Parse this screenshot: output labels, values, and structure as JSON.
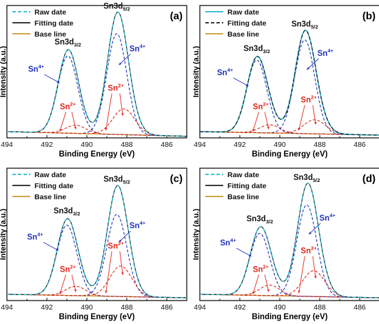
{
  "colors": {
    "raw": "#22b7c9",
    "fit": "#1b1b1b",
    "base": "#c89a2a",
    "sn4": "#1f2fbf",
    "sn2": "#e0241b",
    "axis": "#000000"
  },
  "chart_data": [
    {
      "type": "line",
      "panel_label": "(a)",
      "xlabel": "Binding Energy (eV)",
      "ylabel": "Intensity (a.u.)",
      "xlim": [
        494,
        485
      ],
      "x_ticks": [
        "494",
        "492",
        "490",
        "488",
        "486"
      ],
      "legend": {
        "placement": "top-left",
        "entries": [
          "Raw date",
          "Fitting date",
          "Base line"
        ],
        "styles": [
          "dashed-raw",
          "solid-fit",
          "solid-base"
        ]
      },
      "fit_style": "solid",
      "annotations": {
        "peak_left": "Sn3d",
        "peak_left_sub": "3/2",
        "peak_right": "Sn3d",
        "peak_right_sub": "5/2",
        "sn4": "Sn",
        "sn4_sup": "4+",
        "sn2": "Sn",
        "sn2_sup": "2+"
      },
      "peaks": [
        {
          "species": "Sn4+",
          "level": "3d3/2",
          "center": 490.95,
          "height": 0.66,
          "width": 0.5
        },
        {
          "species": "Sn2+",
          "level": "3d3/2",
          "center": 490.55,
          "height": 0.07,
          "width": 0.5
        },
        {
          "species": "Sn4+",
          "level": "3d5/2",
          "center": 488.5,
          "height": 0.86,
          "width": 0.5
        },
        {
          "species": "Sn2+",
          "level": "3d5/2",
          "center": 488.15,
          "height": 0.22,
          "width": 0.55
        }
      ],
      "baseline": [
        0.03,
        -0.01
      ]
    },
    {
      "type": "line",
      "panel_label": "(b)",
      "xlabel": "Binding Energy (eV)",
      "ylabel": "Intensity (a.u.)",
      "xlim": [
        494,
        485
      ],
      "x_ticks": [
        "494",
        "492",
        "490",
        "488",
        "486"
      ],
      "legend": {
        "placement": "top-left",
        "entries": [
          "Raw date",
          "Fitting date",
          "Base line"
        ],
        "styles": [
          "solid-raw",
          "dashed-fit",
          "solid-base"
        ]
      },
      "fit_style": "dashed",
      "annotations": {
        "peak_left": "Sn3d",
        "peak_left_sub": "3/2",
        "peak_right": "Sn3d",
        "peak_right_sub": "5/2",
        "sn4": "Sn",
        "sn4_sup": "4+",
        "sn2": "Sn",
        "sn2_sup": "2+"
      },
      "peaks": [
        {
          "species": "Sn4+",
          "level": "3d3/2",
          "center": 491.15,
          "height": 0.62,
          "width": 0.5
        },
        {
          "species": "Sn2+",
          "level": "3d3/2",
          "center": 490.5,
          "height": 0.07,
          "width": 0.5
        },
        {
          "species": "Sn4+",
          "level": "3d5/2",
          "center": 488.75,
          "height": 0.8,
          "width": 0.5
        },
        {
          "species": "Sn2+",
          "level": "3d5/2",
          "center": 488.25,
          "height": 0.12,
          "width": 0.55
        }
      ],
      "baseline": [
        0.03,
        0.0
      ]
    },
    {
      "type": "line",
      "panel_label": "(c)",
      "xlabel": "Binding Energy (eV)",
      "ylabel": "Intensity (a.u.)",
      "xlim": [
        494,
        485
      ],
      "x_ticks": [
        "494",
        "492",
        "490",
        "488",
        "486"
      ],
      "legend": {
        "placement": "top-left",
        "entries": [
          "Raw date",
          "Fitting date",
          "Base line"
        ],
        "styles": [
          "dashed-raw",
          "solid-fit",
          "solid-base"
        ]
      },
      "fit_style": "solid",
      "annotations": {
        "peak_left": "Sn3d",
        "peak_left_sub": "3/2",
        "peak_right": "Sn3d",
        "peak_right_sub": "5/2",
        "sn4": "Sn",
        "sn4_sup": "4+",
        "sn2": "Sn",
        "sn2_sup": "2+"
      },
      "peaks": [
        {
          "species": "Sn4+",
          "level": "3d3/2",
          "center": 491.0,
          "height": 0.6,
          "width": 0.5
        },
        {
          "species": "Sn2+",
          "level": "3d3/2",
          "center": 490.55,
          "height": 0.08,
          "width": 0.5
        },
        {
          "species": "Sn4+",
          "level": "3d5/2",
          "center": 488.5,
          "height": 0.7,
          "width": 0.5
        },
        {
          "species": "Sn2+",
          "level": "3d5/2",
          "center": 488.3,
          "height": 0.26,
          "width": 0.55
        }
      ],
      "baseline": [
        0.03,
        0.0
      ]
    },
    {
      "type": "line",
      "panel_label": "(d)",
      "xlabel": "Binding Energy (eV)",
      "ylabel": "Intensity (a.u.)",
      "xlim": [
        494,
        485
      ],
      "x_ticks": [
        "494",
        "492",
        "490",
        "488",
        "486"
      ],
      "legend": {
        "placement": "top-left",
        "entries": [
          "Raw date",
          "Fitting date",
          "Base line"
        ],
        "styles": [
          "dashed-raw",
          "solid-fit",
          "solid-base"
        ]
      },
      "fit_style": "solid",
      "annotations": {
        "peak_left": "Sn3d",
        "peak_left_sub": "3/2",
        "peak_right": "Sn3d",
        "peak_right_sub": "5/2",
        "sn4": "Sn",
        "sn4_sup": "4+",
        "sn2": "Sn",
        "sn2_sup": "2+"
      },
      "peaks": [
        {
          "species": "Sn4+",
          "level": "3d3/2",
          "center": 491.0,
          "height": 0.53,
          "width": 0.5
        },
        {
          "species": "Sn2+",
          "level": "3d3/2",
          "center": 490.5,
          "height": 0.09,
          "width": 0.5
        },
        {
          "species": "Sn4+",
          "level": "3d5/2",
          "center": 488.65,
          "height": 0.78,
          "width": 0.5
        },
        {
          "species": "Sn2+",
          "level": "3d5/2",
          "center": 488.3,
          "height": 0.22,
          "width": 0.55
        }
      ],
      "baseline": [
        0.03,
        0.0
      ]
    }
  ]
}
